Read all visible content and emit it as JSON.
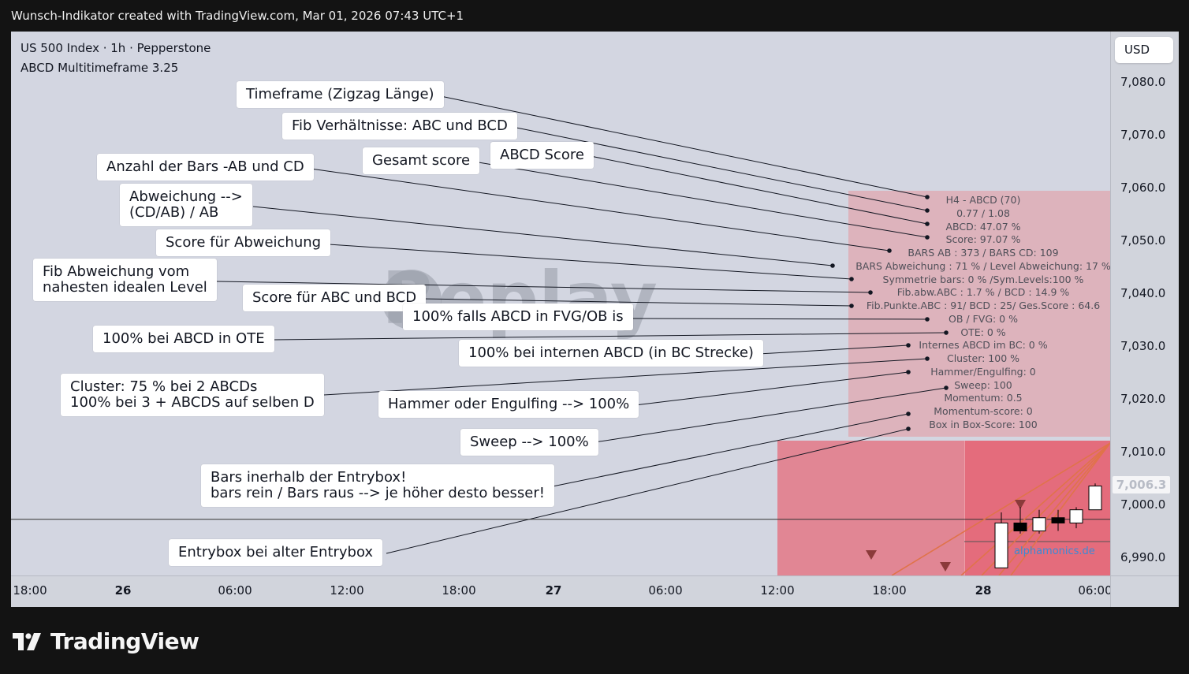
{
  "header": {
    "title": "Wunsch-Indikator created with TradingView.com, Mar 01, 2026 07:43 UTC+1"
  },
  "legend": {
    "symbol_line": "US 500 Index · 1h · Pepperstone",
    "indicator_line": "ABCD Multitimeframe 3.25"
  },
  "price_axis": {
    "currency": "USD",
    "last_price": "7,006.3"
  },
  "watermark": "Replay",
  "info_box_lines": [
    "H4 - ABCD  (70)",
    "0.77 / 1.08",
    "ABCD: 47.07 %",
    "Score: 97.07 %",
    "BARS AB : 373 / BARS CD: 109",
    "BARS Abweichung : 71 % / Level Abweichung: 17 %",
    "Symmetrie bars: 0 % /Sym.Levels:100 %",
    "Fib.abw.ABC : 1.7 % / BCD : 14.9 %",
    "Fib.Punkte.ABC : 91/ BCD : 25/ Ges.Score : 64.6",
    "OB / FVG: 0 %",
    "OTE: 0 %",
    "Internes ABCD im BC: 0 %",
    "Cluster: 100 %",
    "Hammer/Engulfing: 0",
    "Sweep: 100",
    "Momentum: 0.5",
    "Momentum-score: 0",
    "Box in Box-Score: 100"
  ],
  "annotations": {
    "timeframe": "Timeframe (Zigzag Länge)",
    "fib_ratios": "Fib Verhältnisse: ABC und BCD",
    "abcd_score": "ABCD Score",
    "total_score": "Gesamt score",
    "bars_count": "Anzahl der Bars -AB und CD",
    "deviation_1": "Abweichung -->",
    "deviation_2": "(CD/AB) / AB",
    "deviation_score": "Score für Abweichung",
    "fib_dev_1": "Fib Abweichung vom",
    "fib_dev_2": "nahesten idealen Level",
    "abc_bcd_score": "Score für ABC und BCD",
    "fvg_ob": "100% falls ABCD in FVG/OB is",
    "ote": "100%  bei ABCD in OTE",
    "internal_abcd": "100% bei internen ABCD (in BC Strecke)",
    "cluster_1": "Cluster:  75 % bei 2 ABCDs",
    "cluster_2": "100% bei 3 + ABCDS auf selben D",
    "hammer": "Hammer oder Engulfing --> 100%",
    "sweep": "Sweep --> 100%",
    "bars_entry_1": "Bars inerhalb der Entrybox!",
    "bars_entry_2": "bars rein / Bars raus --> je höher desto besser!",
    "entrybox": "Entrybox bei alter Entrybox"
  },
  "site_label": "alphamonics.de",
  "footer": {
    "logo_text": "TradingView"
  },
  "colors": {
    "info_box": "#e6989e",
    "entry_box": "#e6707d",
    "bull_candle": "#ffffff",
    "bear_candle": "#000000",
    "trend_lines": "#e0734a",
    "triangle_markers": "#8b3a3a"
  },
  "chart_data": {
    "type": "candlestick",
    "title": "US 500 Index · 1h · Pepperstone",
    "xlabel": "",
    "ylabel": "",
    "ylim": [
      6988,
      7090
    ],
    "y_ticks": [
      7080.0,
      7070.0,
      7060.0,
      7050.0,
      7040.0,
      7030.0,
      7020.0,
      7010.0,
      7000.0,
      6990.0
    ],
    "y_tick_labels": [
      "7,080.0",
      "7,070.0",
      "7,060.0",
      "7,050.0",
      "7,040.0",
      "7,030.0",
      "7,020.0",
      "7,010.0",
      "7,000.0",
      "6,990.0"
    ],
    "x_tick_labels": [
      {
        "label": "18:00",
        "bold": false
      },
      {
        "label": "26",
        "bold": true
      },
      {
        "label": "06:00",
        "bold": false
      },
      {
        "label": "12:00",
        "bold": false
      },
      {
        "label": "18:00",
        "bold": false
      },
      {
        "label": "27",
        "bold": true
      },
      {
        "label": "06:00",
        "bold": false
      },
      {
        "label": "12:00",
        "bold": false
      },
      {
        "label": "18:00",
        "bold": false
      },
      {
        "label": "28",
        "bold": true
      },
      {
        "label": "06:00",
        "bold": false
      }
    ],
    "last_price": 7006.3,
    "horizontal_line": 6997.2,
    "candles": [
      {
        "open": 6988,
        "high": 6998.5,
        "low": 6988,
        "close": 6996.5
      },
      {
        "open": 6996.5,
        "high": 6999.5,
        "low": 6994.5,
        "close": 6995
      },
      {
        "open": 6995,
        "high": 6999,
        "low": 6994.5,
        "close": 6997.5
      },
      {
        "open": 6997.5,
        "high": 6999,
        "low": 6995,
        "close": 6996.5
      },
      {
        "open": 6996.5,
        "high": 6999.5,
        "low": 6995.5,
        "close": 6999
      },
      {
        "open": 6999,
        "high": 7004,
        "low": 6999,
        "close": 7003.5
      }
    ]
  }
}
